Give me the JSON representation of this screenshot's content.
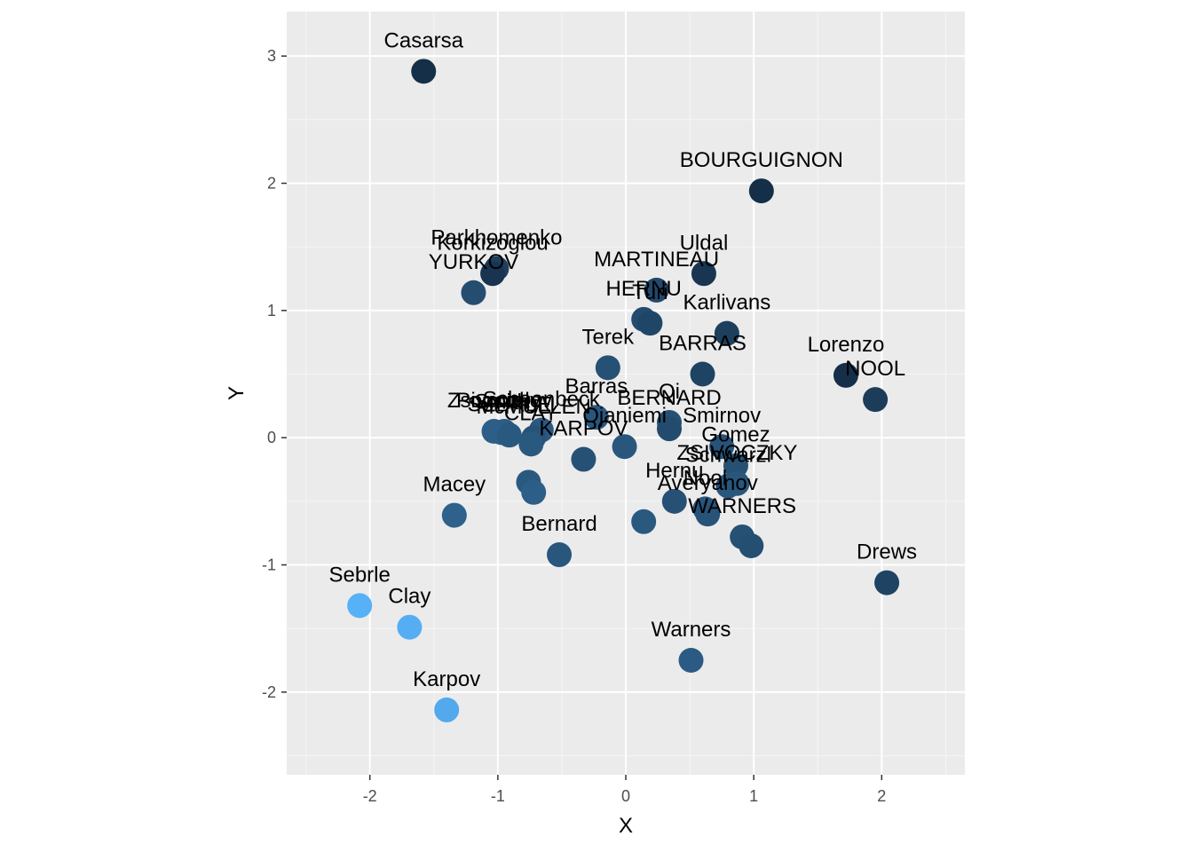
{
  "chart_data": {
    "type": "scatter",
    "title": "",
    "xlabel": "X",
    "ylabel": "Y",
    "xlim": [
      -2.65,
      2.65
    ],
    "ylim": [
      -2.65,
      3.35
    ],
    "xticks": [
      -2,
      -1,
      0,
      1,
      2
    ],
    "yticks": [
      -2,
      -1,
      0,
      1,
      2,
      3
    ],
    "xtick_labels": [
      "-2",
      "-1",
      "0",
      "1",
      "2"
    ],
    "ytick_labels": [
      "-2",
      "-1",
      "0",
      "1",
      "2",
      "3"
    ],
    "grid": true,
    "legend": "none",
    "colors": {
      "panel_background": "#ebebeb",
      "grid_major": "#ffffff",
      "grid_minor": "#f5f5f5",
      "tick_mark": "#333333",
      "color_scale_low": "#56b1f7",
      "color_scale_high": "#132b43"
    },
    "points": [
      {
        "label": "Casarsa",
        "x": -1.58,
        "y": 2.88,
        "shade": 0.97
      },
      {
        "label": "BOURGUIGNON",
        "x": 1.06,
        "y": 1.94,
        "shade": 0.97
      },
      {
        "label": "Parkhomenko",
        "x": -1.01,
        "y": 1.33,
        "shade": 0.85
      },
      {
        "label": "Korkizoglou",
        "x": -1.04,
        "y": 1.29,
        "shade": 0.93
      },
      {
        "label": "YURKOV",
        "x": -1.19,
        "y": 1.14,
        "shade": 0.75
      },
      {
        "label": "Uldal",
        "x": 0.61,
        "y": 1.29,
        "shade": 0.92
      },
      {
        "label": "MARTINEAU",
        "x": 0.24,
        "y": 1.16,
        "shade": 0.78
      },
      {
        "label": "HERNU",
        "x": 0.14,
        "y": 0.93,
        "shade": 0.76
      },
      {
        "label": "Turi",
        "x": 0.19,
        "y": 0.9,
        "shade": 0.8
      },
      {
        "label": "Karlivans",
        "x": 0.79,
        "y": 0.82,
        "shade": 0.85
      },
      {
        "label": "Terek",
        "x": -0.14,
        "y": 0.55,
        "shade": 0.72
      },
      {
        "label": "BARRAS",
        "x": 0.6,
        "y": 0.5,
        "shade": 0.82
      },
      {
        "label": "Lorenzo",
        "x": 1.72,
        "y": 0.49,
        "shade": 0.97
      },
      {
        "label": "NOOL",
        "x": 1.95,
        "y": 0.3,
        "shade": 0.87
      },
      {
        "label": "Barras",
        "x": -0.23,
        "y": 0.16,
        "shade": 0.68
      },
      {
        "label": "Qi",
        "x": 0.34,
        "y": 0.12,
        "shade": 0.72
      },
      {
        "label": "BERNARD",
        "x": 0.34,
        "y": 0.07,
        "shade": 0.76
      },
      {
        "label": "Zsivoczky",
        "x": -1.03,
        "y": 0.05,
        "shade": 0.62
      },
      {
        "label": "Pogorelov",
        "x": -0.95,
        "y": 0.05,
        "shade": 0.66
      },
      {
        "label": "Smith",
        "x": -0.97,
        "y": 0.04,
        "shade": 0.62
      },
      {
        "label": "SEBRLE",
        "x": -0.91,
        "y": 0.02,
        "shade": 0.66
      },
      {
        "label": "Schoenbeck",
        "x": -0.66,
        "y": 0.06,
        "shade": 0.66
      },
      {
        "label": "McMULLEN",
        "x": -0.72,
        "y": 0.0,
        "shade": 0.7
      },
      {
        "label": "CLAY",
        "x": -0.74,
        "y": -0.05,
        "shade": 0.66
      },
      {
        "label": "KARPOV",
        "x": -0.33,
        "y": -0.17,
        "shade": 0.72
      },
      {
        "label": "Smirnov",
        "x": 0.75,
        "y": -0.07,
        "shade": 0.7
      },
      {
        "label": "Gomez",
        "x": 0.86,
        "y": -0.22,
        "shade": 0.72
      },
      {
        "label": "Ojaniemi",
        "x": -0.01,
        "y": -0.07,
        "shade": 0.68
      },
      {
        "label": "ZSIVOCZKY",
        "x": 0.87,
        "y": -0.36,
        "shade": 0.68
      },
      {
        "label": "Schwarzl",
        "x": 0.8,
        "y": -0.38,
        "shade": 0.68
      },
      {
        "label": "Hernu",
        "x": 0.38,
        "y": -0.5,
        "shade": 0.72
      },
      {
        "label": "Nool",
        "x": 0.62,
        "y": -0.56,
        "shade": 0.68
      },
      {
        "label": "Averyanov",
        "x": 0.64,
        "y": -0.6,
        "shade": 0.7
      },
      {
        "label": "WARNERS",
        "x": 0.91,
        "y": -0.78,
        "shade": 0.72
      },
      {
        "label": "Macey",
        "x": -1.34,
        "y": -0.61,
        "shade": 0.6
      },
      {
        "label": "",
        "x": -0.76,
        "y": -0.35,
        "shade": 0.66
      },
      {
        "label": "",
        "x": -0.72,
        "y": -0.43,
        "shade": 0.62
      },
      {
        "label": "",
        "x": 0.14,
        "y": -0.66,
        "shade": 0.66
      },
      {
        "label": "",
        "x": 0.98,
        "y": -0.85,
        "shade": 0.74
      },
      {
        "label": "Bernard",
        "x": -0.52,
        "y": -0.92,
        "shade": 0.68
      },
      {
        "label": "Drews",
        "x": 2.04,
        "y": -1.14,
        "shade": 0.82
      },
      {
        "label": "Sebrle",
        "x": -2.08,
        "y": -1.32,
        "shade": 0.0
      },
      {
        "label": "Clay",
        "x": -1.69,
        "y": -1.49,
        "shade": 0.02
      },
      {
        "label": "Warners",
        "x": 0.51,
        "y": -1.75,
        "shade": 0.64
      },
      {
        "label": "Karpov",
        "x": -1.4,
        "y": -2.14,
        "shade": 0.06
      }
    ]
  }
}
